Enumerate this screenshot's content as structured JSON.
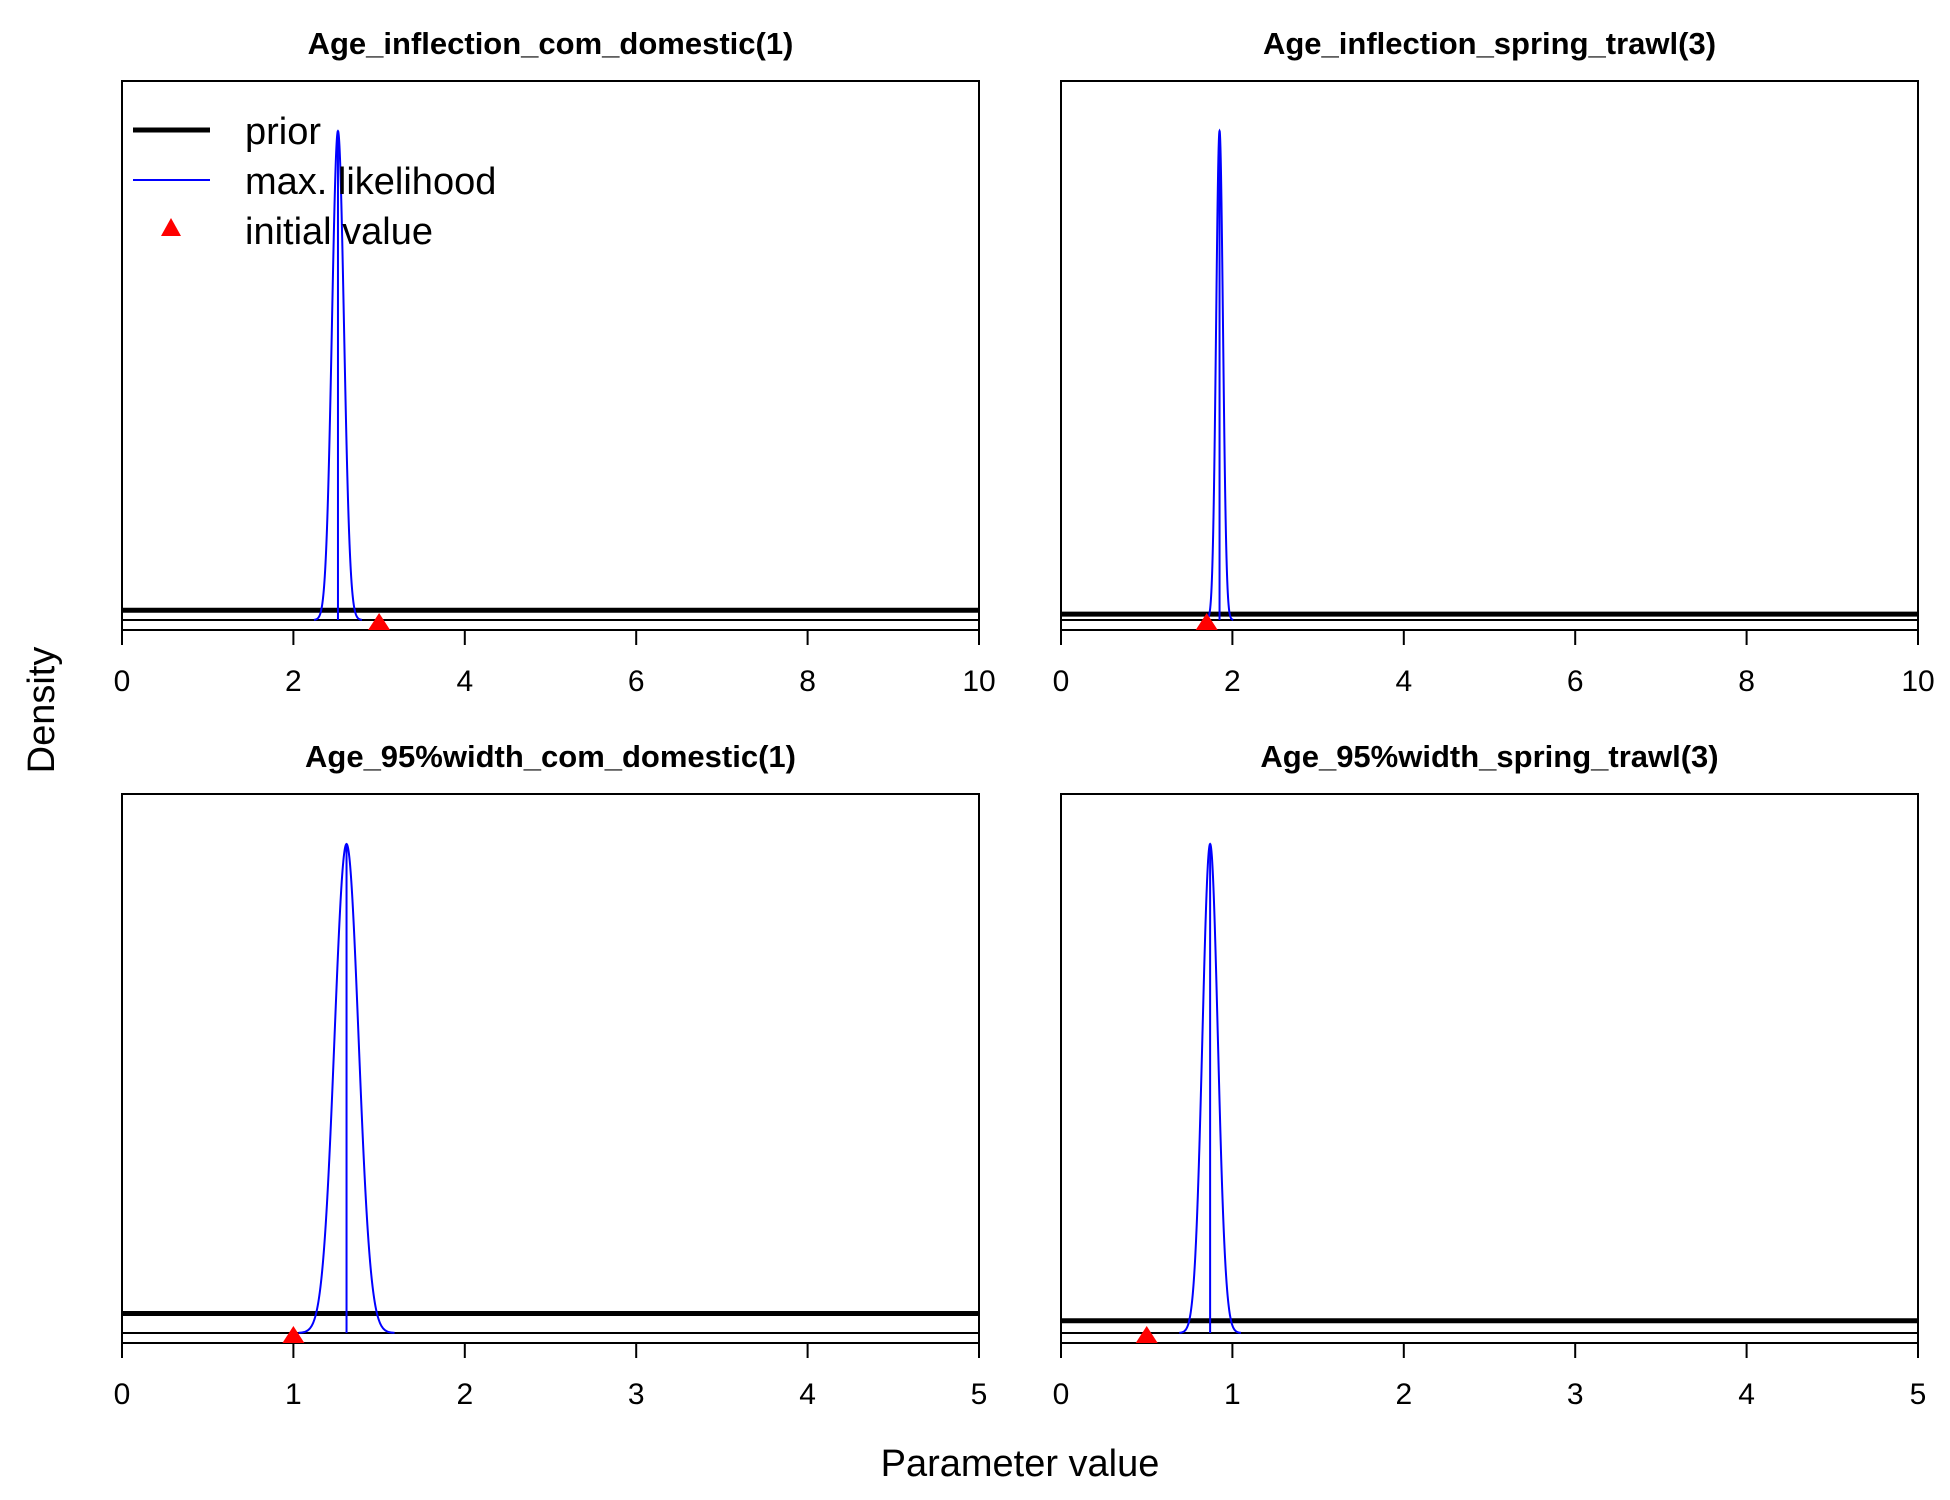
{
  "figure": {
    "xlabel": "Parameter value",
    "ylabel": "Density"
  },
  "legend": {
    "placement": "top-left of first panel",
    "entries": [
      {
        "label": "prior",
        "style": "thick-line",
        "color": "#000000"
      },
      {
        "label": "max. likelihood",
        "style": "thin-line",
        "color": "#0000ff"
      },
      {
        "label": "initial value",
        "style": "triangle-marker",
        "color": "#ff0000"
      }
    ]
  },
  "colors": {
    "prior": "#000000",
    "mle": "#0000ff",
    "initial": "#ff0000",
    "axes": "#000000"
  },
  "chart_data": [
    {
      "type": "line",
      "title": "Age_inflection_com_domestic(1)",
      "xlim": [
        0,
        10
      ],
      "xticks": [
        0,
        2,
        4,
        6,
        8,
        10
      ],
      "xtick_labels": [
        "0",
        "2",
        "4",
        "6",
        "8",
        "10"
      ],
      "series": [
        {
          "name": "prior",
          "kind": "uniform",
          "relative_height": 0.02
        },
        {
          "name": "max. likelihood",
          "kind": "normal",
          "mean": 2.52,
          "sd": 0.07
        }
      ],
      "initial_value": 3.0
    },
    {
      "type": "line",
      "title": "Age_inflection_spring_trawl(3)",
      "xlim": [
        0,
        10
      ],
      "xticks": [
        0,
        2,
        4,
        6,
        8,
        10
      ],
      "xtick_labels": [
        "0",
        "2",
        "4",
        "6",
        "8",
        "10"
      ],
      "series": [
        {
          "name": "prior",
          "kind": "uniform",
          "relative_height": 0.012
        },
        {
          "name": "max. likelihood",
          "kind": "normal",
          "mean": 1.85,
          "sd": 0.04
        }
      ],
      "initial_value": 1.7
    },
    {
      "type": "line",
      "title": "Age_95%width_com_domestic(1)",
      "xlim": [
        0,
        5
      ],
      "xticks": [
        0,
        1,
        2,
        3,
        4,
        5
      ],
      "xtick_labels": [
        "0",
        "1",
        "2",
        "3",
        "4",
        "5"
      ],
      "series": [
        {
          "name": "prior",
          "kind": "uniform",
          "relative_height": 0.04
        },
        {
          "name": "max. likelihood",
          "kind": "normal",
          "mean": 1.31,
          "sd": 0.07
        }
      ],
      "initial_value": 1.0
    },
    {
      "type": "line",
      "title": "Age_95%width_spring_trawl(3)",
      "xlim": [
        0,
        5
      ],
      "xticks": [
        0,
        1,
        2,
        3,
        4,
        5
      ],
      "xtick_labels": [
        "0",
        "1",
        "2",
        "3",
        "4",
        "5"
      ],
      "series": [
        {
          "name": "prior",
          "kind": "uniform",
          "relative_height": 0.025
        },
        {
          "name": "max. likelihood",
          "kind": "normal",
          "mean": 0.87,
          "sd": 0.045
        }
      ],
      "initial_value": 0.5
    }
  ]
}
